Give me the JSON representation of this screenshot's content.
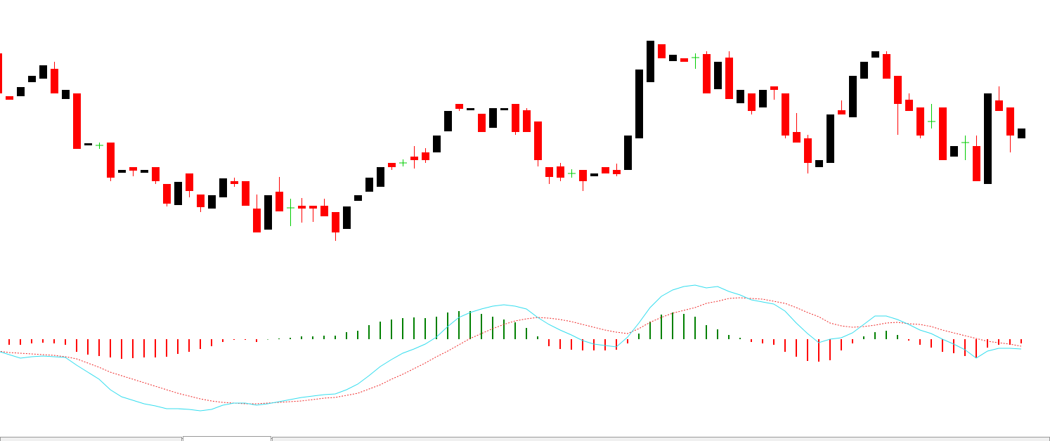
{
  "chart_data": [
    {
      "type": "candlestick",
      "ylim": [
        40,
        400
      ],
      "up_color": "#000000",
      "down_color": "#ff0000",
      "doji_color": "#00cc00",
      "open": [
        324,
        263,
        263,
        283,
        288,
        302,
        259,
        267,
        193,
        193,
        197,
        154,
        162,
        154,
        162,
        138,
        108,
        153,
        123,
        103,
        119,
        142,
        142,
        103,
        73,
        127,
        104,
        107,
        107,
        107,
        98,
        74,
        114,
        127,
        134,
        168,
        168,
        177,
        183,
        183,
        213,
        252,
        243,
        238,
        218,
        243,
        252,
        243,
        227,
        162,
        163,
        153,
        158,
        149,
        162,
        158,
        158,
        203,
        283,
        337,
        313,
        317,
        318,
        323,
        273,
        318,
        253,
        267,
        247,
        277,
        267,
        212,
        203,
        162,
        168,
        243,
        233,
        288,
        318,
        323,
        292,
        258,
        247,
        227,
        247,
        177,
        197,
        192,
        138,
        257,
        247,
        203
      ],
      "high": [
        324,
        263,
        276,
        292,
        307,
        312,
        272,
        267,
        196,
        197,
        197,
        158,
        162,
        158,
        162,
        138,
        141,
        153,
        123,
        122,
        146,
        147,
        142,
        123,
        122,
        148,
        117,
        118,
        107,
        117,
        98,
        106,
        122,
        147,
        162,
        168,
        173,
        192,
        189,
        207,
        242,
        252,
        246,
        238,
        246,
        246,
        252,
        246,
        227,
        162,
        168,
        159,
        158,
        153,
        162,
        167,
        207,
        301,
        342,
        337,
        322,
        317,
        324,
        327,
        312,
        327,
        272,
        267,
        272,
        277,
        267,
        239,
        208,
        172,
        237,
        257,
        292,
        312,
        327,
        327,
        292,
        267,
        247,
        252,
        247,
        192,
        207,
        207,
        267,
        277,
        247,
        217
      ],
      "low": [
        267,
        258,
        263,
        283,
        288,
        267,
        259,
        188,
        193,
        188,
        142,
        154,
        149,
        154,
        138,
        106,
        108,
        119,
        98,
        103,
        119,
        134,
        107,
        69,
        73,
        99,
        78,
        83,
        84,
        92,
        57,
        74,
        114,
        127,
        134,
        158,
        163,
        160,
        168,
        183,
        213,
        242,
        243,
        212,
        218,
        243,
        208,
        212,
        163,
        138,
        142,
        147,
        128,
        149,
        153,
        149,
        158,
        203,
        283,
        317,
        313,
        312,
        302,
        267,
        273,
        259,
        253,
        237,
        247,
        258,
        203,
        197,
        153,
        162,
        168,
        237,
        233,
        288,
        318,
        288,
        208,
        242,
        203,
        217,
        172,
        177,
        172,
        142,
        138,
        242,
        183,
        203
      ],
      "close": [
        267,
        258,
        276,
        292,
        307,
        267,
        272,
        188,
        196,
        193,
        147,
        158,
        157,
        158,
        142,
        110,
        141,
        128,
        105,
        122,
        146,
        138,
        107,
        69,
        122,
        99,
        104,
        103,
        103,
        92,
        69,
        106,
        122,
        147,
        162,
        162,
        168,
        172,
        172,
        207,
        242,
        245,
        246,
        212,
        246,
        246,
        212,
        212,
        172,
        148,
        147,
        153,
        142,
        153,
        153,
        152,
        207,
        301,
        342,
        317,
        322,
        312,
        318,
        267,
        312,
        259,
        272,
        242,
        272,
        272,
        207,
        197,
        168,
        172,
        237,
        237,
        292,
        312,
        327,
        288,
        252,
        242,
        207,
        227,
        172,
        192,
        197,
        142,
        267,
        242,
        207,
        217
      ]
    },
    {
      "type": "macd",
      "ylim": [
        -117,
        88
      ],
      "histogram_up_color": "#008000",
      "histogram_down_color": "#ff0000",
      "macd_color": "#33ddee",
      "signal_color": "#ee2222",
      "histogram": [
        -8,
        -8,
        -8,
        -6,
        -5,
        -6,
        -8,
        -18,
        -22,
        -24,
        -26,
        -28,
        -27,
        -26,
        -26,
        -25,
        -21,
        -18,
        -14,
        -10,
        -4,
        -1,
        -1,
        -4,
        0,
        1,
        2,
        4,
        4,
        5,
        5,
        10,
        12,
        20,
        25,
        28,
        30,
        31,
        30,
        32,
        38,
        40,
        40,
        36,
        32,
        28,
        24,
        16,
        4,
        -10,
        -14,
        -15,
        -16,
        -16,
        -16,
        -15,
        -6,
        8,
        25,
        35,
        38,
        36,
        32,
        20,
        14,
        6,
        2,
        -4,
        -6,
        -8,
        -18,
        -25,
        -31,
        -32,
        -30,
        -16,
        -6,
        4,
        10,
        12,
        6,
        -2,
        -8,
        -12,
        -18,
        -20,
        -24,
        -26,
        -12,
        -8,
        -8,
        -6
      ],
      "macd": [
        -17,
        -22,
        -27,
        -25,
        -24,
        -25,
        -26,
        -37,
        -47,
        -57,
        -72,
        -82,
        -87,
        -92,
        -95,
        -99,
        -99,
        -100,
        -102,
        -100,
        -94,
        -91,
        -91,
        -94,
        -92,
        -89,
        -86,
        -83,
        -81,
        -79,
        -78,
        -72,
        -64,
        -52,
        -39,
        -29,
        -20,
        -14,
        -7,
        3,
        18,
        31,
        38,
        43,
        47,
        49,
        47,
        43,
        31,
        21,
        13,
        6,
        -2,
        -7,
        -9,
        -11,
        3,
        23,
        45,
        61,
        70,
        75,
        77,
        73,
        75,
        68,
        63,
        56,
        53,
        50,
        40,
        23,
        8,
        -5,
        0,
        2,
        9,
        21,
        33,
        33,
        28,
        21,
        13,
        8,
        0,
        -7,
        -15,
        -27,
        -17,
        -13,
        -13,
        -14
      ],
      "signal": [
        -17,
        -19,
        -20,
        -21,
        -22,
        -23,
        -25,
        -28,
        -34,
        -40,
        -47,
        -52,
        -57,
        -62,
        -67,
        -72,
        -77,
        -81,
        -85,
        -88,
        -90,
        -91,
        -92,
        -92,
        -91,
        -90,
        -89,
        -88,
        -86,
        -84,
        -83,
        -80,
        -77,
        -71,
        -65,
        -57,
        -50,
        -42,
        -34,
        -25,
        -17,
        -8,
        1,
        8,
        15,
        21,
        26,
        29,
        31,
        30,
        28,
        25,
        21,
        17,
        13,
        10,
        8,
        15,
        24,
        31,
        37,
        41,
        45,
        51,
        54,
        58,
        59,
        58,
        57,
        54,
        51,
        45,
        38,
        32,
        23,
        19,
        17,
        18,
        20,
        23,
        24,
        22,
        21,
        18,
        13,
        9,
        5,
        1,
        -3,
        -5,
        -7,
        -10
      ]
    }
  ]
}
